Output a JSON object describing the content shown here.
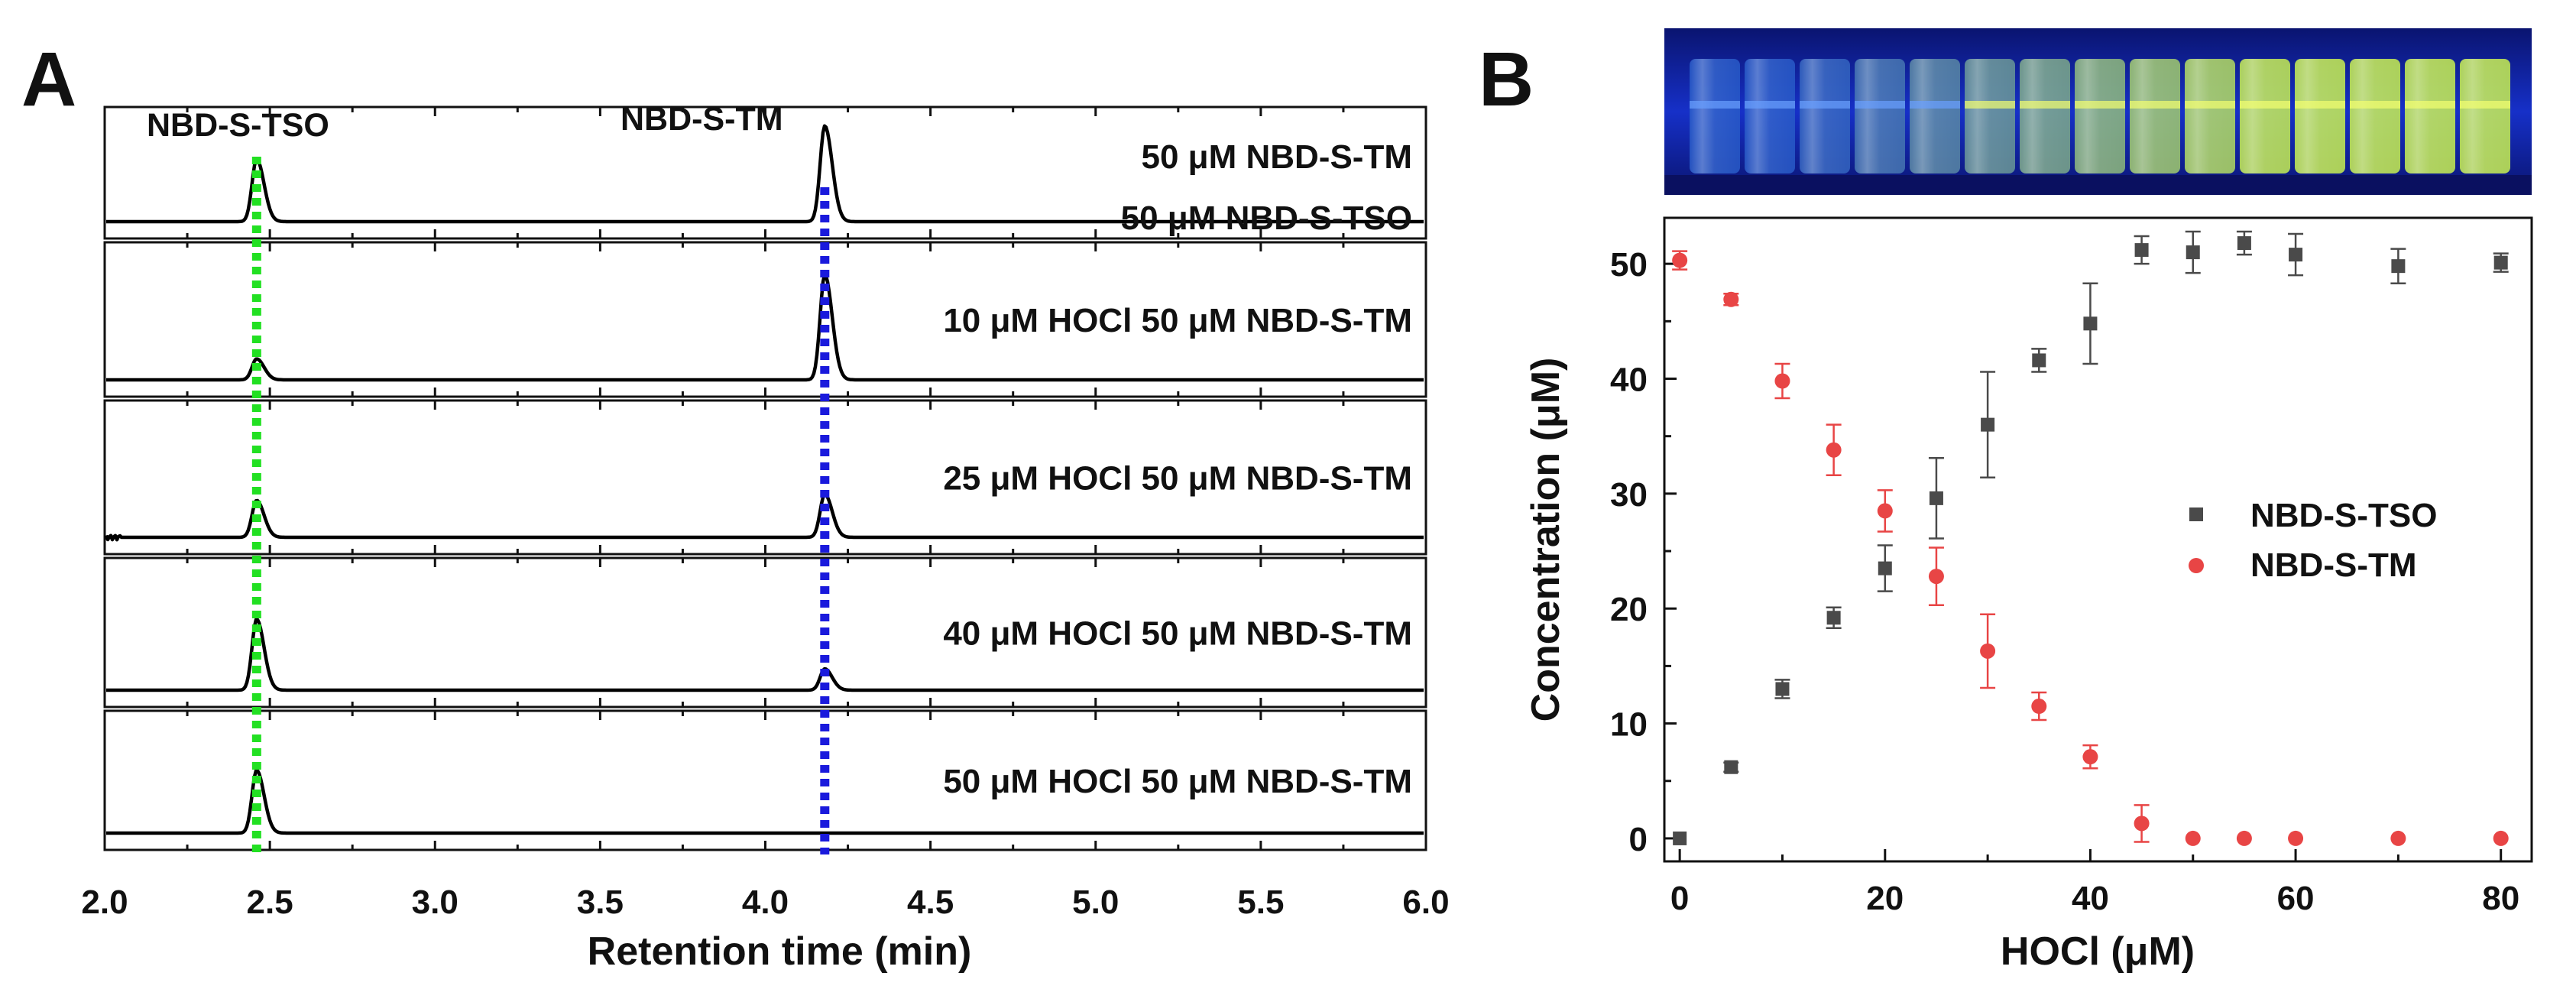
{
  "panels": {
    "a_label": "A",
    "b_label": "B"
  },
  "photo": {
    "description_icon": "vial-row-uv-photo-icon"
  },
  "chart_data": [
    {
      "type": "line",
      "panel": "A",
      "title": "",
      "xlabel": "Retention time (min)",
      "ylabel": "",
      "xlim": [
        2.0,
        6.0
      ],
      "xticks": [
        "2.0",
        "2.5",
        "3.0",
        "3.5",
        "4.0",
        "4.5",
        "5.0",
        "5.5",
        "6.0"
      ],
      "peak_labels": {
        "tso": "NBD-S-TSO",
        "tm": "NBD-S-TM"
      },
      "reference_lines": [
        {
          "name": "NBD-S-TSO",
          "x": 2.46,
          "color": "#22e022",
          "style": "dotted"
        },
        {
          "name": "NBD-S-TM",
          "x": 4.18,
          "color": "#1a1adc",
          "style": "dotted"
        }
      ],
      "series": [
        {
          "label_line1": "50 μM NBD-S-TM",
          "label_line2": "50 μM NBD-S-TSO",
          "peaks": [
            {
              "x": 2.46,
              "height": 0.62
            },
            {
              "x": 4.18,
              "height": 0.95
            }
          ]
        },
        {
          "label_line1": "10 μM HOCl 50 μM NBD-S-TM",
          "label_line2": "",
          "peaks": [
            {
              "x": 2.46,
              "height": 0.17
            },
            {
              "x": 4.18,
              "height": 0.85
            }
          ]
        },
        {
          "label_line1": "25 μM HOCl 50 μM NBD-S-TM",
          "label_line2": "",
          "peaks": [
            {
              "x": 2.46,
              "height": 0.3
            },
            {
              "x": 4.18,
              "height": 0.35
            }
          ]
        },
        {
          "label_line1": "40 μM HOCl 50 μM NBD-S-TM",
          "label_line2": "",
          "peaks": [
            {
              "x": 2.46,
              "height": 0.6
            },
            {
              "x": 4.18,
              "height": 0.18
            }
          ]
        },
        {
          "label_line1": "50 μM HOCl 50 μM NBD-S-TM",
          "label_line2": "",
          "peaks": [
            {
              "x": 2.46,
              "height": 0.58
            }
          ]
        }
      ]
    },
    {
      "type": "scatter",
      "panel": "B",
      "title": "",
      "xlabel": "HOCl (μM)",
      "ylabel": "Concentration (μM)",
      "xlim": [
        0,
        80
      ],
      "ylim": [
        -2,
        54
      ],
      "xticks": [
        0,
        20,
        40,
        60,
        80
      ],
      "yticks": [
        0,
        10,
        20,
        30,
        40,
        50
      ],
      "legend_position": "center-right",
      "series": [
        {
          "name": "NBD-S-TSO",
          "marker": "square",
          "color": "#4a4a4a",
          "x": [
            0,
            5,
            10,
            15,
            20,
            25,
            30,
            35,
            40,
            45,
            50,
            55,
            60,
            70,
            80
          ],
          "y": [
            0,
            6.2,
            13.0,
            19.2,
            23.5,
            29.6,
            36.0,
            41.6,
            44.8,
            51.2,
            51.0,
            51.8,
            50.8,
            49.8,
            50.1
          ],
          "err": [
            0.2,
            0.4,
            0.8,
            0.9,
            2.0,
            3.5,
            4.6,
            1.0,
            3.5,
            1.2,
            1.8,
            1.0,
            1.8,
            1.5,
            0.8
          ]
        },
        {
          "name": "NBD-S-TM",
          "marker": "circle",
          "color": "#e84545",
          "x": [
            0,
            5,
            10,
            15,
            20,
            25,
            30,
            35,
            40,
            45,
            50,
            55,
            60,
            70,
            80
          ],
          "y": [
            50.3,
            46.9,
            39.8,
            33.8,
            28.5,
            22.8,
            16.3,
            11.5,
            7.1,
            1.3,
            0,
            0,
            0,
            0,
            0
          ],
          "err": [
            0.8,
            0.5,
            1.5,
            2.2,
            1.8,
            2.5,
            3.2,
            1.2,
            1.0,
            1.6,
            0.1,
            0.1,
            0.1,
            0.1,
            0.1
          ]
        }
      ]
    }
  ]
}
